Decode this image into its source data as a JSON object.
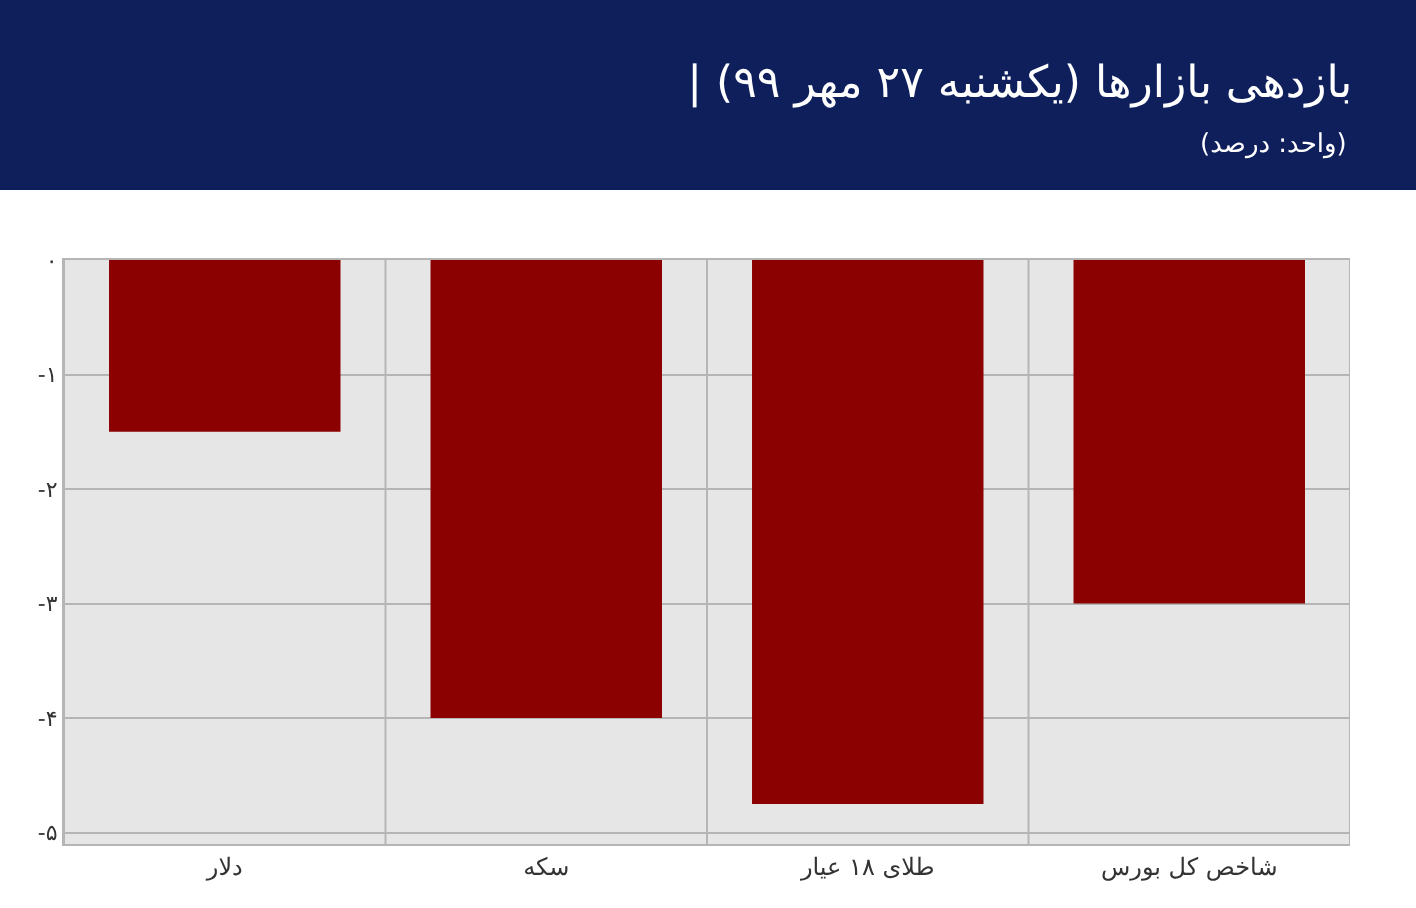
{
  "chart_data": {
    "type": "bar",
    "title": "| بازدهی بازارها (یکشنبه ۲۷ مهر ۹۹)",
    "subtitle": "(واحد: درصد)",
    "categories": [
      "دلار",
      "سکه",
      "طلای ۱۸ عیار",
      "شاخص کل بورس"
    ],
    "values": [
      -1.5,
      -4,
      -4.75,
      -3
    ],
    "color": "#8b0000",
    "ylim": [
      -5.1,
      0
    ],
    "yticks": [
      {
        "value": 0,
        "label": "۰"
      },
      {
        "value": -1,
        "label": "-۱"
      },
      {
        "value": -2,
        "label": "-۲"
      },
      {
        "value": -3,
        "label": "-۳"
      },
      {
        "value": -4,
        "label": "-۴"
      },
      {
        "value": -5,
        "label": "-۵"
      }
    ],
    "grid": true
  }
}
